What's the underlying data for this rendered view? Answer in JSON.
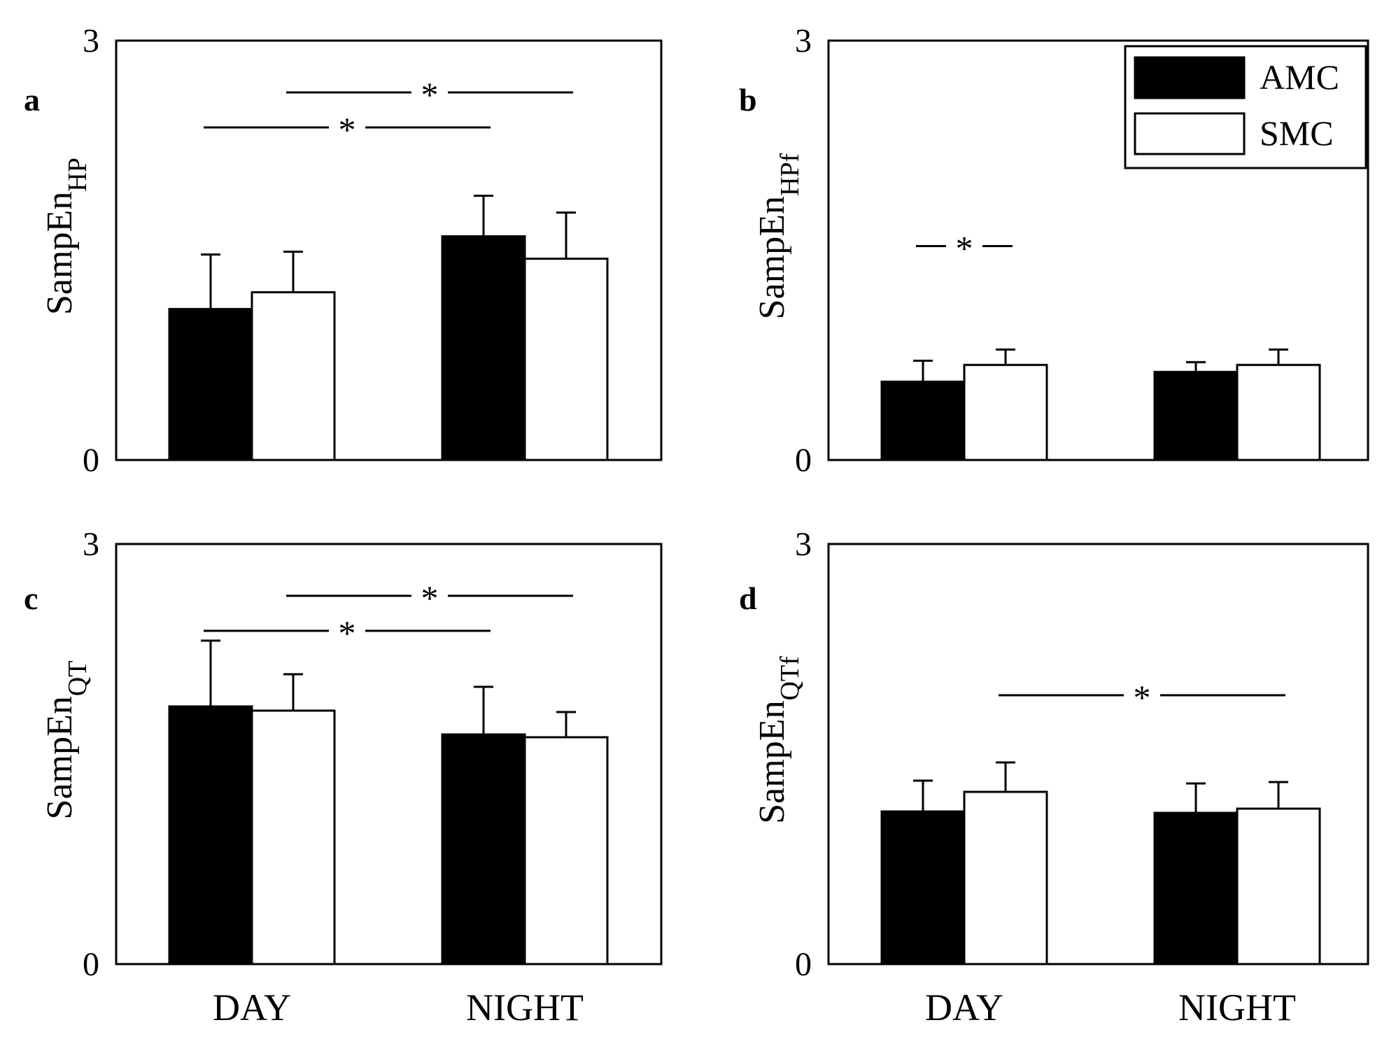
{
  "legend": [
    {
      "name": "AMC",
      "fill": "#000000"
    },
    {
      "name": "SMC",
      "fill": "#ffffff"
    }
  ],
  "chart_data": [
    {
      "type": "bar",
      "panel": "a",
      "ylabel": {
        "main": "SampEn",
        "sub": "HP"
      },
      "ylim": [
        0,
        3
      ],
      "yticks": [
        "0",
        "3"
      ],
      "categories": [
        "DAY",
        "NIGHT"
      ],
      "series": [
        {
          "name": "AMC",
          "values": [
            1.08,
            1.6
          ],
          "errors": [
            0.39,
            0.29
          ]
        },
        {
          "name": "SMC",
          "values": [
            1.2,
            1.44
          ],
          "errors": [
            0.29,
            0.33
          ]
        }
      ],
      "significance": [
        {
          "label": "*",
          "from": [
            0,
            0
          ],
          "to": [
            1,
            0
          ]
        },
        {
          "label": "*",
          "from": [
            0,
            1
          ],
          "to": [
            1,
            1
          ]
        }
      ]
    },
    {
      "type": "bar",
      "panel": "b",
      "ylabel": {
        "main": "SampEn",
        "sub": "HPf"
      },
      "ylim": [
        0,
        3
      ],
      "yticks": [
        "0",
        "3"
      ],
      "categories": [
        "DAY",
        "NIGHT"
      ],
      "series": [
        {
          "name": "AMC",
          "values": [
            0.56,
            0.63
          ],
          "errors": [
            0.15,
            0.07
          ]
        },
        {
          "name": "SMC",
          "values": [
            0.68,
            0.68
          ],
          "errors": [
            0.11,
            0.11
          ]
        }
      ],
      "significance": [
        {
          "label": "*",
          "from": [
            0,
            0
          ],
          "to": [
            0,
            1
          ]
        }
      ]
    },
    {
      "type": "bar",
      "panel": "c",
      "ylabel": {
        "main": "SampEn",
        "sub": "QT"
      },
      "ylim": [
        0,
        3
      ],
      "yticks": [
        "0",
        "3"
      ],
      "categories": [
        "DAY",
        "NIGHT"
      ],
      "series": [
        {
          "name": "AMC",
          "values": [
            1.84,
            1.64
          ],
          "errors": [
            0.47,
            0.34
          ]
        },
        {
          "name": "SMC",
          "values": [
            1.81,
            1.62
          ],
          "errors": [
            0.26,
            0.18
          ]
        }
      ],
      "significance": [
        {
          "label": "*",
          "from": [
            0,
            0
          ],
          "to": [
            1,
            0
          ]
        },
        {
          "label": "*",
          "from": [
            0,
            1
          ],
          "to": [
            1,
            1
          ]
        }
      ]
    },
    {
      "type": "bar",
      "panel": "d",
      "ylabel": {
        "main": "SampEn",
        "sub": "QTf"
      },
      "ylim": [
        0,
        3
      ],
      "yticks": [
        "0",
        "3"
      ],
      "categories": [
        "DAY",
        "NIGHT"
      ],
      "series": [
        {
          "name": "AMC",
          "values": [
            1.09,
            1.08
          ],
          "errors": [
            0.22,
            0.21
          ]
        },
        {
          "name": "SMC",
          "values": [
            1.23,
            1.11
          ],
          "errors": [
            0.21,
            0.19
          ]
        }
      ],
      "significance": [
        {
          "label": "*",
          "from": [
            0,
            1
          ],
          "to": [
            1,
            1
          ]
        }
      ]
    }
  ]
}
